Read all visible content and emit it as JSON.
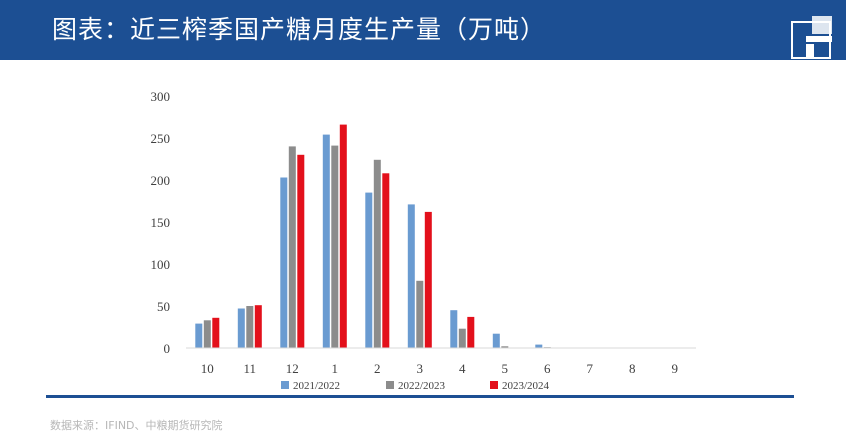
{
  "header": {
    "title": "图表：近三榨季国产糖月度生产量（万吨）"
  },
  "colors": {
    "header_bg": "#1c4f93",
    "series": [
      "#6a9bd1",
      "#8c8c8c",
      "#e3101b"
    ]
  },
  "chart_data": {
    "type": "bar",
    "categories": [
      "10",
      "11",
      "12",
      "1",
      "2",
      "3",
      "4",
      "5",
      "6",
      "7",
      "8",
      "9"
    ],
    "series": [
      {
        "name": "2021/2022",
        "values": [
          29,
          47,
          203,
          254,
          185,
          171,
          45,
          17,
          4,
          0,
          0,
          0
        ]
      },
      {
        "name": "2022/2023",
        "values": [
          33,
          50,
          240,
          241,
          224,
          80,
          23,
          2,
          1,
          0,
          0,
          0
        ]
      },
      {
        "name": "2023/2024",
        "values": [
          36,
          51,
          230,
          266,
          208,
          162,
          37,
          null,
          null,
          null,
          null,
          null
        ]
      }
    ],
    "ylim": [
      0,
      300
    ],
    "yticks": [
      "0",
      "50",
      "100",
      "150",
      "200",
      "250",
      "300"
    ],
    "grid": false,
    "legend": "bottom"
  },
  "source": "数据来源：IFIND、中粮期货研究院"
}
